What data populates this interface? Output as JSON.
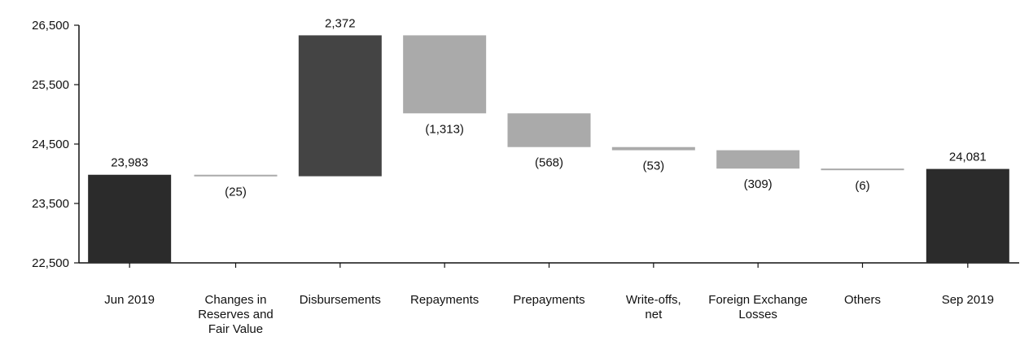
{
  "chart_data": {
    "type": "bar",
    "subtype": "waterfall",
    "ylim": [
      22500,
      26500
    ],
    "yticks": [
      "22,500",
      "23,500",
      "24,500",
      "25,500",
      "26,500"
    ],
    "ytick_values": [
      22500,
      23500,
      24500,
      25500,
      26500
    ],
    "grid": false,
    "categories": [
      [
        "Jun 2019"
      ],
      [
        "Changes in",
        "Reserves and",
        "Fair Value"
      ],
      [
        "Disbursements"
      ],
      [
        "Repayments"
      ],
      [
        "Prepayments"
      ],
      [
        "Write-offs,",
        "net"
      ],
      [
        "Foreign Exchange",
        "Losses"
      ],
      [
        "Others"
      ],
      [
        "Sep 2019"
      ]
    ],
    "values": [
      23983,
      -25,
      2372,
      -1313,
      -568,
      -53,
      -309,
      -6,
      24081
    ],
    "kinds": [
      "total",
      "delta",
      "delta",
      "delta",
      "delta",
      "delta",
      "delta",
      "delta",
      "total"
    ],
    "data_labels": [
      "23,983",
      "(25)",
      "2,372",
      "(1,313)",
      "(568)",
      "(53)",
      "(309)",
      "(6)",
      "24,081"
    ],
    "colors": {
      "total": "#2b2b2b",
      "increase": "#444444",
      "decrease": "#aaaaaa",
      "axis": "#111111"
    }
  }
}
